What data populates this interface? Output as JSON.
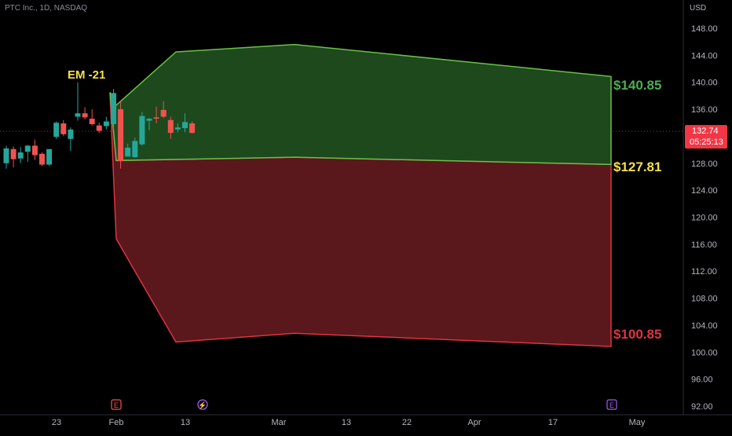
{
  "header": {
    "symbol": "PTC Inc., 1D, NASDAQ",
    "currency": "USD"
  },
  "colors": {
    "background": "#000000",
    "up_candle": "#26a69a",
    "down_candle": "#ef5350",
    "green_zone_fill": "#1f4d1f",
    "green_zone_stroke": "#6abf4b",
    "red_zone_fill": "#5a171c",
    "red_zone_stroke": "#e0333f",
    "annotation_yellow": "#f4e04d",
    "label_green": "#4caf50",
    "label_red": "#e0333f",
    "axis_text": "#b2b5be",
    "price_badge": "#f23645"
  },
  "annotations": {
    "em_label": "EM -21",
    "upper_label": "$140.85",
    "mid_label": "$127.81",
    "lower_label": "$100.85"
  },
  "current_price": {
    "price": "132.74",
    "countdown": "05:25:13"
  },
  "event_markers": [
    {
      "x_label": "Feb",
      "icon": "earnings-icon",
      "glyph": "E"
    },
    {
      "x_label": "13",
      "icon": "lightning-icon",
      "glyph": "⚡"
    },
    {
      "x_label": "May",
      "icon": "earnings-icon",
      "glyph": "E"
    }
  ],
  "chart_data": {
    "type": "candlestick",
    "y_axis": {
      "ticks": [
        "148.00",
        "144.00",
        "140.00",
        "136.00",
        "132.00",
        "128.00",
        "124.00",
        "120.00",
        "116.00",
        "112.00",
        "108.00",
        "104.00",
        "100.00",
        "96.00",
        "92.00"
      ],
      "range": [
        91,
        150
      ]
    },
    "x_axis": {
      "ticks": [
        "23",
        "Feb",
        "13",
        "Mar",
        "13",
        "22",
        "Apr",
        "17",
        "May"
      ]
    },
    "candles": [
      {
        "o": 128.0,
        "h": 130.6,
        "l": 127.2,
        "c": 130.2
      },
      {
        "o": 130.1,
        "h": 130.5,
        "l": 127.4,
        "c": 128.6
      },
      {
        "o": 128.7,
        "h": 130.4,
        "l": 128.0,
        "c": 129.6
      },
      {
        "o": 129.7,
        "h": 130.7,
        "l": 128.2,
        "c": 130.6
      },
      {
        "o": 130.6,
        "h": 131.5,
        "l": 128.5,
        "c": 129.2
      },
      {
        "o": 129.4,
        "h": 129.6,
        "l": 127.6,
        "c": 127.8
      },
      {
        "o": 127.8,
        "h": 130.1,
        "l": 127.6,
        "c": 130.1
      },
      {
        "o": 131.9,
        "h": 134.2,
        "l": 131.6,
        "c": 134.0
      },
      {
        "o": 133.9,
        "h": 134.4,
        "l": 132.0,
        "c": 132.3
      },
      {
        "o": 131.6,
        "h": 133.3,
        "l": 129.8,
        "c": 133.0
      },
      {
        "o": 134.9,
        "h": 140.0,
        "l": 134.3,
        "c": 135.4
      },
      {
        "o": 135.4,
        "h": 136.3,
        "l": 134.5,
        "c": 134.8
      },
      {
        "o": 134.6,
        "h": 136.0,
        "l": 133.6,
        "c": 133.8
      },
      {
        "o": 133.6,
        "h": 134.0,
        "l": 132.5,
        "c": 132.8
      },
      {
        "o": 133.5,
        "h": 134.9,
        "l": 133.0,
        "c": 134.2
      },
      {
        "o": 133.8,
        "h": 139.0,
        "l": 133.1,
        "c": 138.4
      },
      {
        "o": 136.0,
        "h": 137.2,
        "l": 127.2,
        "c": 128.3
      },
      {
        "o": 129.0,
        "h": 130.9,
        "l": 129.0,
        "c": 130.3
      },
      {
        "o": 128.9,
        "h": 131.8,
        "l": 128.8,
        "c": 131.3
      },
      {
        "o": 130.8,
        "h": 135.6,
        "l": 130.6,
        "c": 135.0
      },
      {
        "o": 134.3,
        "h": 134.7,
        "l": 132.9,
        "c": 134.6
      },
      {
        "o": 134.8,
        "h": 136.4,
        "l": 133.9,
        "c": 134.6
      },
      {
        "o": 135.9,
        "h": 137.2,
        "l": 134.7,
        "c": 134.9
      },
      {
        "o": 134.4,
        "h": 134.9,
        "l": 131.6,
        "c": 132.5
      },
      {
        "o": 133.0,
        "h": 133.9,
        "l": 132.6,
        "c": 133.3
      },
      {
        "o": 133.2,
        "h": 135.4,
        "l": 132.6,
        "c": 134.1
      },
      {
        "o": 133.9,
        "h": 134.2,
        "l": 132.4,
        "c": 132.5
      }
    ],
    "expected_move_zones": {
      "upper_bound": 140.85,
      "mid_bound": 127.81,
      "lower_bound": 100.85
    }
  }
}
